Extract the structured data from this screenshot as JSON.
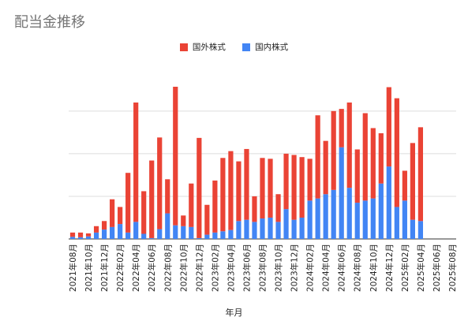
{
  "chart_data": {
    "type": "bar",
    "stacked": true,
    "title": "配当金推移",
    "xlabel": "年月",
    "ylabel": "",
    "legend_position": "top",
    "grid": true,
    "y_tick_labels_shown": false,
    "categories": [
      "2021年08月",
      "2021年09月",
      "2021年10月",
      "2021年11月",
      "2021年12月",
      "2022年01月",
      "2022年02月",
      "2022年03月",
      "2022年04月",
      "2022年05月",
      "2022年06月",
      "2022年07月",
      "2022年08月",
      "2022年09月",
      "2022年10月",
      "2022年11月",
      "2022年12月",
      "2023年01月",
      "2023年02月",
      "2023年03月",
      "2023年04月",
      "2023年05月",
      "2023年06月",
      "2023年07月",
      "2023年08月",
      "2023年09月",
      "2023年10月",
      "2023年11月",
      "2023年12月",
      "2024年01月",
      "2024年02月",
      "2024年03月",
      "2024年04月",
      "2024年05月",
      "2024年06月",
      "2024年07月",
      "2024年08月",
      "2024年09月",
      "2024年10月",
      "2024年11月",
      "2024年12月",
      "2025年01月",
      "2025年02月",
      "2025年03月",
      "2025年04月",
      "2025年05月",
      "2025年06月",
      "2025年07月",
      "2025年08月"
    ],
    "x_tick_labels": [
      "2021年08月",
      "2021年10月",
      "2021年12月",
      "2022年02月",
      "2022年04月",
      "2022年06月",
      "2022年08月",
      "2022年10月",
      "2022年12月",
      "2023年02月",
      "2023年04月",
      "2023年06月",
      "2023年08月",
      "2023年10月",
      "2023年12月",
      "2024年02月",
      "2024年04月",
      "2024年06月",
      "2024年08月",
      "2024年10月",
      "2024年12月",
      "2025年02月",
      "2025年04月",
      "2025年06月",
      "2025年08月"
    ],
    "ylim": [
      0,
      3.2
    ],
    "y_gridlines": [
      0,
      1,
      2,
      3
    ],
    "series": [
      {
        "name": "国内株式",
        "color": "#4285f4",
        "values": [
          0.05,
          0.04,
          0.06,
          0.15,
          0.22,
          0.28,
          0.35,
          0.15,
          0.4,
          0.12,
          0.02,
          0.23,
          0.6,
          0.32,
          0.3,
          0.28,
          0.02,
          0.1,
          0.15,
          0.18,
          0.21,
          0.42,
          0.45,
          0.4,
          0.48,
          0.5,
          0.4,
          0.7,
          0.45,
          0.5,
          0.9,
          0.95,
          1.05,
          1.15,
          2.15,
          1.2,
          0.85,
          0.9,
          0.95,
          1.3,
          1.7,
          0.75,
          0.9,
          0.45,
          0.42,
          0,
          0,
          0,
          0
        ]
      },
      {
        "name": "国外株式",
        "color": "#ea4335",
        "values": [
          0.1,
          0.11,
          0.07,
          0.15,
          0.2,
          0.65,
          0.4,
          1.4,
          2.8,
          1.0,
          1.82,
          2.15,
          0.8,
          3.25,
          0.25,
          1.02,
          2.35,
          0.7,
          1.22,
          1.72,
          1.85,
          1.4,
          1.66,
          0.6,
          1.42,
          1.38,
          0.65,
          1.3,
          1.52,
          1.42,
          0.98,
          1.95,
          1.25,
          1.85,
          0.9,
          2.0,
          1.25,
          2.05,
          1.65,
          1.18,
          1.86,
          2.55,
          0.7,
          1.8,
          2.2,
          0,
          0,
          0,
          0
        ]
      }
    ]
  }
}
